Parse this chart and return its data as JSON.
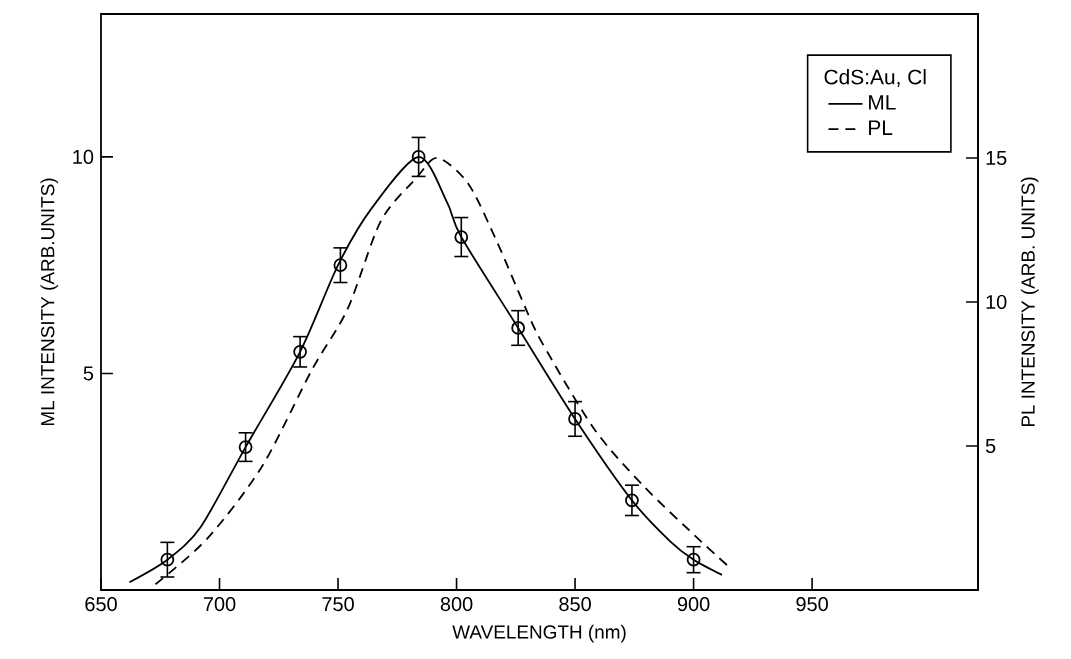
{
  "chart_data": {
    "type": "line",
    "xlabel": "WAVELENGTH (nm)",
    "ylabel": "ML INTENSITY (ARB.UNITS)",
    "y2label": "PL INTENSITY (ARB. UNITS)",
    "legend_title": "CdS:Au, Cl",
    "legend": "top right",
    "xlim": [
      650,
      1020
    ],
    "xticks": [
      650,
      700,
      750,
      800,
      850,
      900,
      950
    ],
    "ylim": [
      0,
      13.3
    ],
    "yticks": [
      5,
      10
    ],
    "y2lim": [
      0,
      20
    ],
    "y2ticks": [
      5,
      10,
      15
    ],
    "series": [
      {
        "name": "ML",
        "color": "#000000",
        "line_style": "solid",
        "marker": "none",
        "x": [
          662,
          678,
          692,
          711,
          734,
          750,
          764,
          784,
          796,
          802,
          826,
          850,
          874,
          890,
          900,
          912
        ],
        "values": [
          0.18,
          0.7,
          1.45,
          3.3,
          5.5,
          7.5,
          8.8,
          10,
          8.95,
          8.15,
          6.05,
          3.95,
          2.07,
          1.13,
          0.7,
          0.35
        ]
      },
      {
        "type": "scatter",
        "color": "#000000",
        "marker": "circle",
        "x": [
          678,
          711,
          734,
          751,
          784,
          802,
          826,
          850,
          874,
          900
        ],
        "values": [
          0.7,
          3.3,
          5.5,
          7.5,
          10,
          8.15,
          6.05,
          3.95,
          2.07,
          0.7
        ],
        "errors": [
          0.4,
          0.33,
          0.35,
          0.4,
          0.45,
          0.45,
          0.4,
          0.4,
          0.35,
          0.3
        ]
      },
      {
        "name": "PL",
        "axis": "y2",
        "color": "#000000",
        "line_style": "dashed",
        "marker": "none",
        "x": [
          673,
          695,
          718,
          739,
          754,
          768,
          783,
          792,
          805,
          817,
          828,
          836,
          858,
          879,
          903,
          915
        ],
        "values": [
          0.2,
          1.8,
          4.3,
          7.65,
          9.75,
          12.8,
          14.3,
          15,
          14.1,
          12.1,
          10,
          8.6,
          5.6,
          3.6,
          1.7,
          0.8
        ]
      }
    ]
  }
}
